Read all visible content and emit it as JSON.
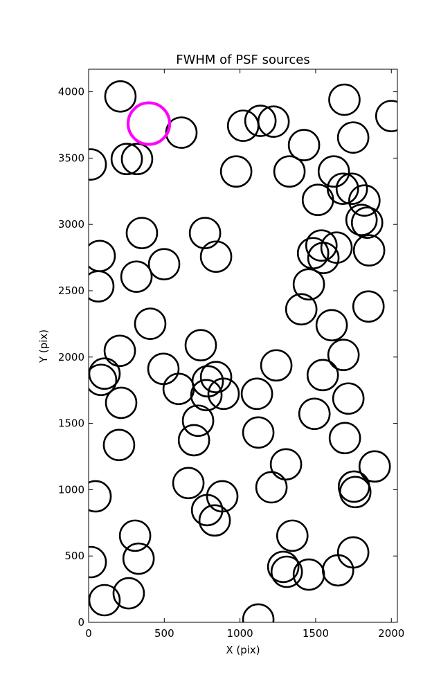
{
  "chart_data": {
    "type": "scatter",
    "title": "FWHM of PSF sources",
    "x_label": "X (pix)",
    "y_label": "Y (pix)",
    "xlim": [
      0,
      2040
    ],
    "ylim": [
      0,
      4170
    ],
    "xticks": [
      0,
      500,
      1000,
      1500,
      2000
    ],
    "yticks": [
      0,
      500,
      1000,
      1500,
      2000,
      2500,
      3000,
      3500,
      4000
    ],
    "grid": false,
    "series": [
      {
        "color": "#000000",
        "x": [
          210,
          1690,
          2000,
          613,
          1021,
          1135,
          1222,
          1748,
          1423,
          252,
          320,
          14,
          975,
          1327,
          1620,
          1680,
          1739,
          1515,
          1822,
          1803,
          1840,
          352,
          769,
          73,
          842,
          1538,
          1638,
          1483,
          1551,
          1853,
          499,
          316,
          64,
          1455,
          1405,
          1849,
          407,
          1606,
          741,
          206,
          1684,
          494,
          1240,
          105,
          82,
          842,
          787,
          595,
          1547,
          1112,
          892,
          778,
          1716,
          215,
          723,
          1492,
          1121,
          1693,
          696,
          201,
          1304,
          1890,
          659,
          1753,
          1762,
          1208,
          46,
          883,
          783,
          833,
          307,
          1346,
          1748,
          330,
          14,
          1286,
          1309,
          1455,
          1648,
          265,
          105,
          1121
        ],
        "values": [
          3965,
          3940,
          3817,
          3692,
          3744,
          3781,
          3775,
          3655,
          3598,
          3493,
          3493,
          3452,
          3399,
          3399,
          3399,
          3269,
          3269,
          3185,
          3180,
          3034,
          3013,
          2935,
          2935,
          2762,
          2757,
          2841,
          2825,
          2783,
          2747,
          2804,
          2700,
          2606,
          2533,
          2548,
          2360,
          2381,
          2251,
          2240,
          2089,
          2047,
          2016,
          1911,
          1937,
          1875,
          1828,
          1849,
          1817,
          1760,
          1864,
          1723,
          1723,
          1713,
          1687,
          1655,
          1520,
          1572,
          1431,
          1389,
          1373,
          1337,
          1191,
          1175,
          1050,
          1023,
          982,
          1018,
          950,
          950,
          846,
          768,
          653,
          653,
          527,
          480,
          454,
          418,
          381,
          360,
          392,
          219,
          167,
          21
        ]
      },
      {
        "color": "#ff00ff",
        "x": [
          398
        ],
        "values": [
          3760
        ]
      }
    ]
  }
}
